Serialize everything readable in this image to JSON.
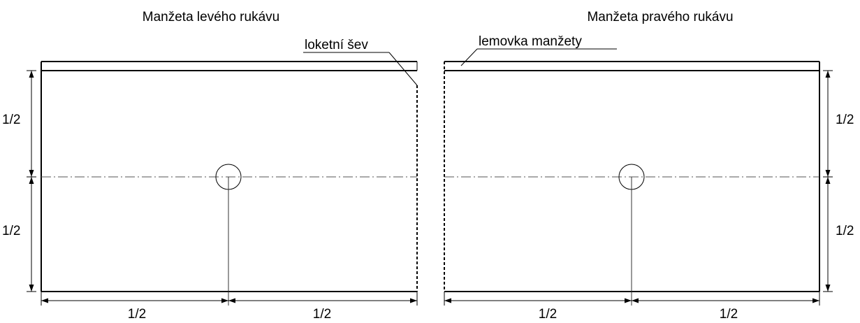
{
  "left": {
    "title": "Manžeta levého rukávu",
    "callout": "loketní šev",
    "dim_upper": "1/2",
    "dim_lower": "1/2",
    "dim_bottom_left": "1/2",
    "dim_bottom_right": "1/2"
  },
  "right": {
    "title": "Manžeta pravého rukávu",
    "callout": "lemovka manžety",
    "dim_upper": "1/2",
    "dim_lower": "1/2",
    "dim_bottom_left": "1/2",
    "dim_bottom_right": "1/2"
  },
  "colors": {
    "line": "#000000",
    "centerline": "#555555",
    "background": "#ffffff"
  }
}
